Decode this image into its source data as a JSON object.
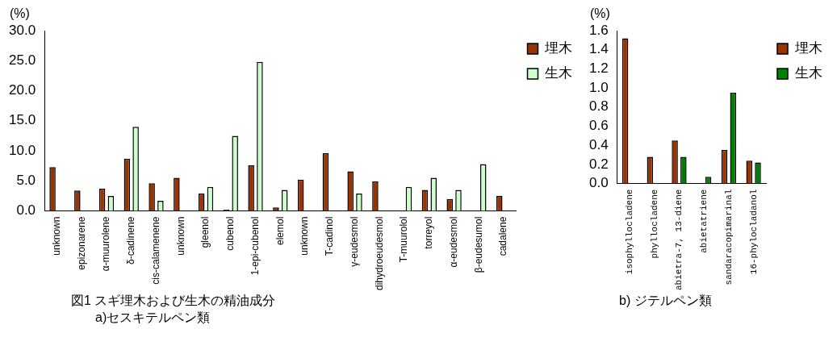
{
  "chart_data": [
    {
      "type": "bar",
      "title": "a)セスキテルペン類",
      "annotations": [
        "図1  スギ埋木および生木の精油成分"
      ],
      "ylabel": "(%)",
      "categories": [
        "unknown",
        "epizonarene",
        "α-muurolene",
        "δ-cadinene",
        "cis-calamenene",
        "unknown",
        "gleenol",
        "cubenol",
        "1-epi-cubenol",
        "elemol",
        "unknown",
        "T-cadinol",
        "γ-eudesmol",
        "dihydroeudesmol",
        "T-muurolol",
        "torreyol",
        "α-eudesmol",
        "β-eudesumol",
        "cadalene"
      ],
      "series": [
        {
          "name": "埋木",
          "color": "#993300",
          "values": [
            7.3,
            3.4,
            3.7,
            8.7,
            4.6,
            5.5,
            2.9,
            0.2,
            7.6,
            0.6,
            5.2,
            9.6,
            6.6,
            4.9,
            null,
            3.5,
            2.0,
            null,
            2.5
          ]
        },
        {
          "name": "生木",
          "color": "#ccffcc",
          "values": [
            null,
            null,
            2.5,
            14.0,
            1.7,
            null,
            4.0,
            12.5,
            24.8,
            3.5,
            null,
            null,
            2.9,
            null,
            4.0,
            5.5,
            3.5,
            7.8,
            null
          ]
        }
      ],
      "ylim": [
        0,
        30
      ],
      "yticks": [
        {
          "value": 0,
          "label": "0.0"
        },
        {
          "value": 5,
          "label": "5.0"
        },
        {
          "value": 10,
          "label": "10.0"
        },
        {
          "value": 15,
          "label": "15.0"
        },
        {
          "value": 20,
          "label": "20.0"
        },
        {
          "value": 25,
          "label": "25.0"
        },
        {
          "value": 30,
          "label": "30.0"
        }
      ],
      "grid": false,
      "legend": "top right"
    },
    {
      "type": "bar",
      "title": "b)  ジテルペン類",
      "ylabel": "(%)",
      "categories": [
        "isophyllocladene",
        "phyllocladene",
        "abietra-7, 13-diene",
        "abietatriene",
        "sandaracopimarinal",
        "16-phylocladanol"
      ],
      "series": [
        {
          "name": "埋木",
          "color": "#993300",
          "values": [
            1.52,
            0.28,
            0.45,
            null,
            0.35,
            0.24
          ]
        },
        {
          "name": "生木",
          "color": "#008000",
          "values": [
            null,
            null,
            0.28,
            0.07,
            0.95,
            0.22
          ]
        }
      ],
      "ylim": [
        0,
        1.6
      ],
      "yticks": [
        {
          "value": 0,
          "label": "0.0"
        },
        {
          "value": 0.2,
          "label": "0.2"
        },
        {
          "value": 0.4,
          "label": "0.4"
        },
        {
          "value": 0.6,
          "label": "0.6"
        },
        {
          "value": 0.8,
          "label": "0.8"
        },
        {
          "value": 1.0,
          "label": "1.0"
        },
        {
          "value": 1.2,
          "label": "1.2"
        },
        {
          "value": 1.4,
          "label": "1.4"
        },
        {
          "value": 1.6,
          "label": "1.6"
        }
      ],
      "grid": false,
      "legend": "top right"
    }
  ]
}
